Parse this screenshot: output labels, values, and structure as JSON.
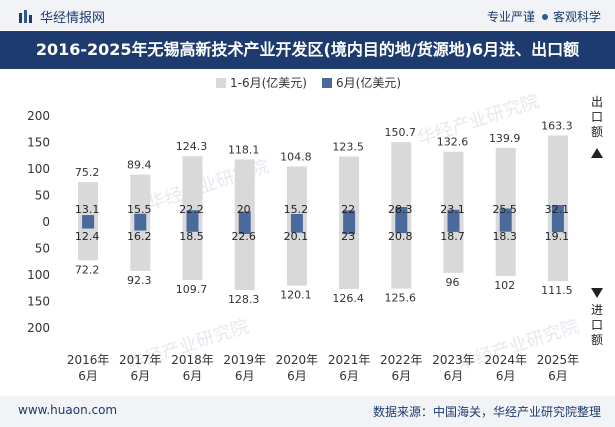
{
  "header": {
    "brand": "华经情报网",
    "tagline_left": "专业严谨",
    "tagline_right": "客观科学"
  },
  "title": "2016-2025年无锡高新技术产业开发区(境内目的地/货源地)6月进、出口额",
  "footer": {
    "site": "www.huaon.com",
    "source": "数据来源：中国海关，华经产业研究院整理"
  },
  "watermark": "华经产业研究院",
  "colors": {
    "cumulative": "#d9d9d9",
    "monthly": "#4a6a9c",
    "header_bg": "#1d3b6e",
    "bar_bg": "#f1f3f6"
  },
  "chart_data": {
    "type": "bar",
    "categories": [
      "2016年\n6月",
      "2017年\n6月",
      "2018年\n6月",
      "2019年\n6月",
      "2020年\n6月",
      "2021年\n6月",
      "2022年\n6月",
      "2023年\n6月",
      "2024年\n6月",
      "2025年\n6月"
    ],
    "series": [
      {
        "name": "1-6月(亿美元)",
        "color": "#d9d9d9",
        "export": [
          75.2,
          89.4,
          124.3,
          118.1,
          104.8,
          123.5,
          150.7,
          132.6,
          139.9,
          163.3
        ],
        "import": [
          72.2,
          92.3,
          109.7,
          128.3,
          120.1,
          126.4,
          125.6,
          96,
          102,
          111.5
        ]
      },
      {
        "name": "6月(亿美元)",
        "color": "#4a6a9c",
        "export": [
          13.1,
          15.5,
          22.2,
          20,
          15.2,
          22,
          28.3,
          23.1,
          25.5,
          32.1
        ],
        "import": [
          12.4,
          16.2,
          18.5,
          22.6,
          20.1,
          23,
          20.8,
          18.7,
          18.3,
          19.1
        ]
      }
    ],
    "ylim": [
      -200,
      200
    ],
    "yticks": [
      200,
      150,
      100,
      50,
      0,
      50,
      100,
      150,
      200
    ],
    "upper_axis_label": "出口额",
    "lower_axis_label": "进口额",
    "legend_position": "top-center",
    "grid": false
  }
}
